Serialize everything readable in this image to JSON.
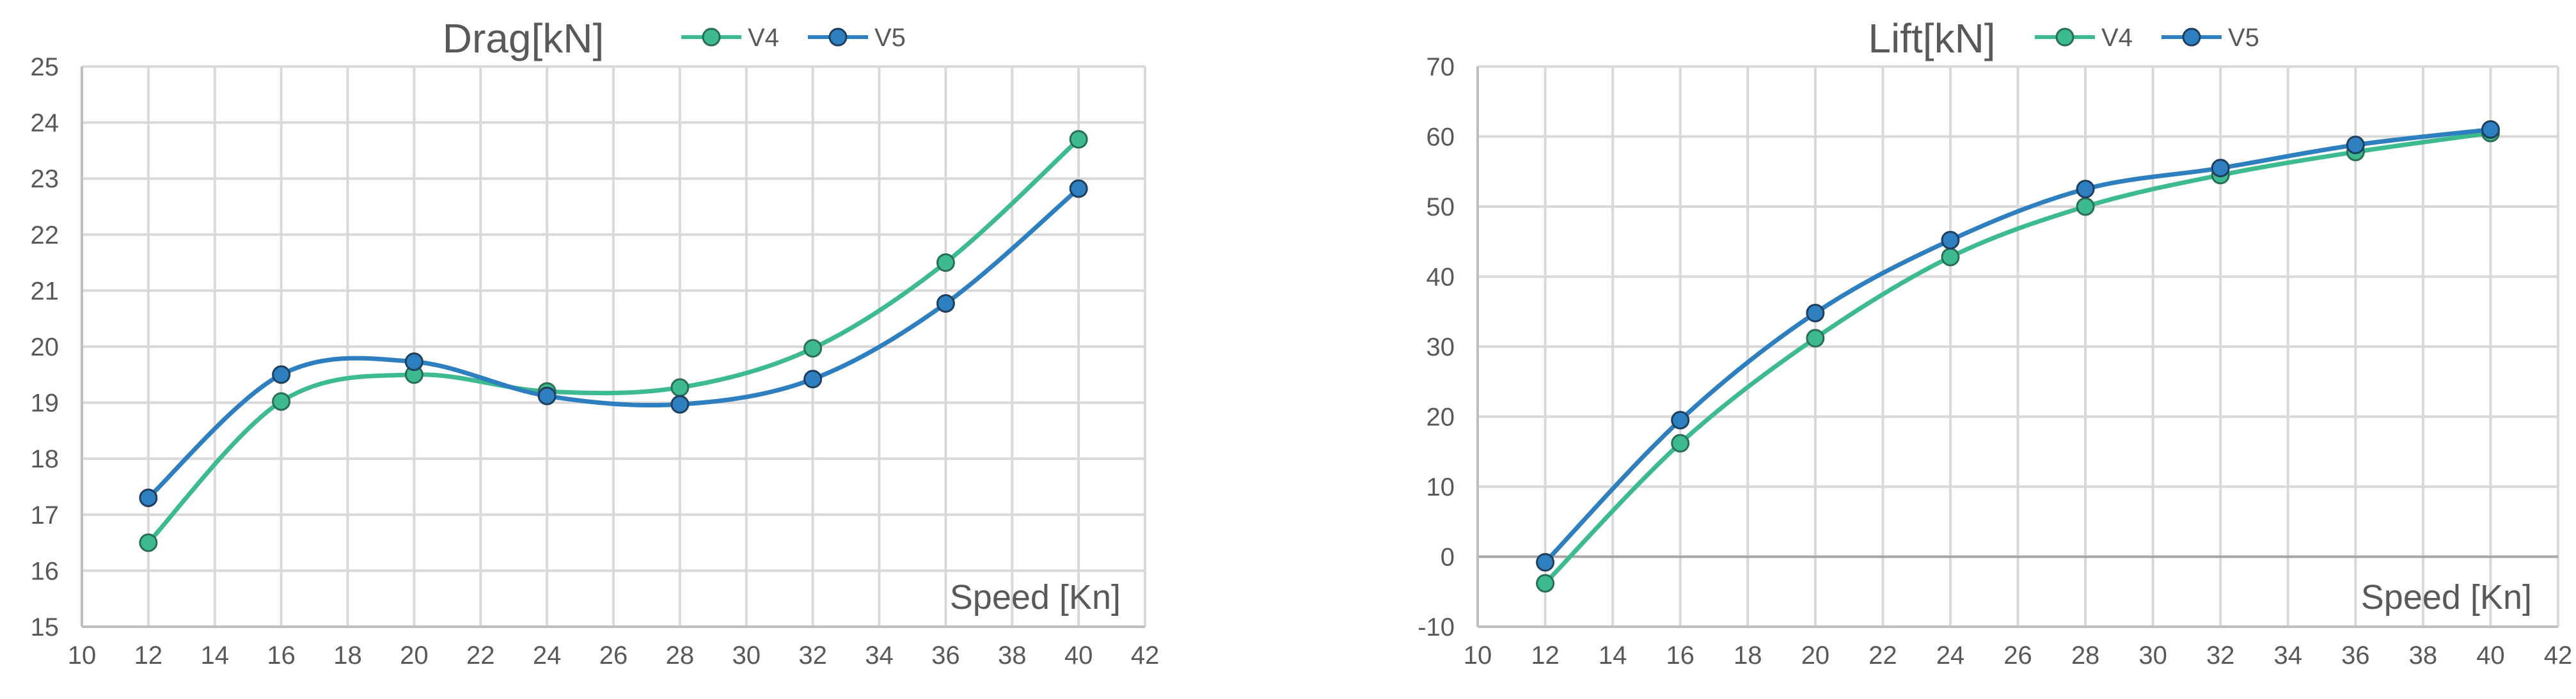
{
  "colors": {
    "V4": "#3dbb8f",
    "V5": "#2e7fbf",
    "V4_edge": "#2a6e55",
    "V5_edge": "#1f3f5f"
  },
  "chart_data": [
    {
      "type": "line",
      "title": "Drag[kN]",
      "xlabel": "Speed [Kn]",
      "ylabel": "",
      "xlim": [
        10,
        42
      ],
      "ylim": [
        15,
        25
      ],
      "x_ticks": [
        "10",
        "12",
        "14",
        "16",
        "18",
        "20",
        "22",
        "24",
        "26",
        "28",
        "30",
        "32",
        "34",
        "36",
        "38",
        "40",
        "42"
      ],
      "y_ticks": [
        "15",
        "16",
        "17",
        "18",
        "19",
        "20",
        "21",
        "22",
        "23",
        "24",
        "25"
      ],
      "legend": "top",
      "grid": true,
      "smooth": true,
      "x": [
        12,
        16,
        20,
        24,
        28,
        32,
        36,
        40
      ],
      "series": [
        {
          "name": "V4",
          "values": [
            16.5,
            19.02,
            19.5,
            19.2,
            19.27,
            19.97,
            21.5,
            23.7
          ]
        },
        {
          "name": "V5",
          "values": [
            17.3,
            19.5,
            19.73,
            19.12,
            18.97,
            19.42,
            20.77,
            22.82
          ]
        }
      ]
    },
    {
      "type": "line",
      "title": "Lift[kN]",
      "xlabel": "Speed [Kn]",
      "ylabel": "",
      "xlim": [
        10,
        42
      ],
      "ylim": [
        -10,
        70
      ],
      "x_ticks": [
        "10",
        "12",
        "14",
        "16",
        "18",
        "20",
        "22",
        "24",
        "26",
        "28",
        "30",
        "32",
        "34",
        "36",
        "38",
        "40",
        "42"
      ],
      "y_ticks": [
        "-10",
        "0",
        "10",
        "20",
        "30",
        "40",
        "50",
        "60",
        "70"
      ],
      "legend": "top",
      "grid": true,
      "smooth": true,
      "x": [
        12,
        16,
        20,
        24,
        28,
        32,
        36,
        40
      ],
      "series": [
        {
          "name": "V4",
          "values": [
            -3.8,
            16.2,
            31.2,
            42.8,
            50.0,
            54.5,
            57.8,
            60.5
          ]
        },
        {
          "name": "V5",
          "values": [
            -0.8,
            19.5,
            34.8,
            45.2,
            52.5,
            55.5,
            58.8,
            61.0
          ]
        }
      ]
    }
  ]
}
